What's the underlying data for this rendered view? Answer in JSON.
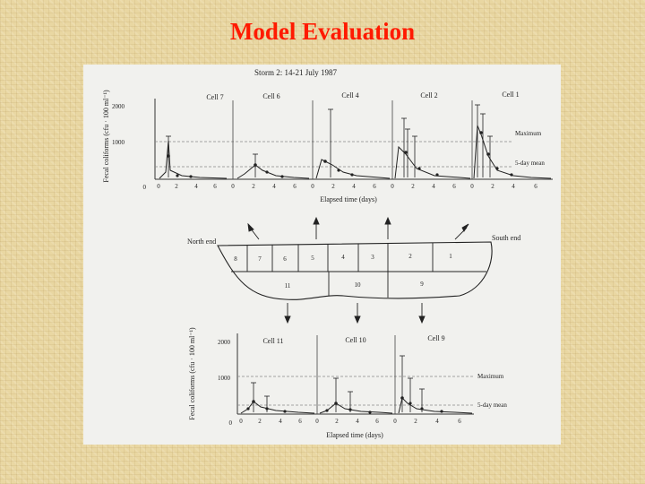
{
  "slide": {
    "title": "Model Evaluation"
  },
  "figure": {
    "caption": "Storm 2: 14-21 July 1987",
    "top_panel": {
      "ylabel": "Fecal coliforms (cfu · 100 ml⁻¹)",
      "y_ticks": [
        "2000",
        "1000",
        "0"
      ],
      "cells": [
        "Cell 7",
        "Cell 6",
        "Cell 4",
        "Cell 2",
        "Cell 1"
      ],
      "x_ticks": [
        "0",
        "2",
        "4",
        "6",
        "0",
        "2",
        "4",
        "6",
        "0",
        "2",
        "4",
        "6",
        "0",
        "2",
        "4",
        "6",
        "0",
        "2",
        "4",
        "6"
      ],
      "xlabel": "Elapsed time (days)",
      "legend_max": "Maximum",
      "legend_mean": "5-day mean"
    },
    "map": {
      "north": "North end",
      "south": "South end",
      "top_row_cells": [
        "8",
        "7",
        "6",
        "5",
        "4",
        "3",
        "2",
        "1"
      ],
      "bottom_row_cells": [
        "11",
        "10",
        "9"
      ]
    },
    "bottom_panel": {
      "ylabel": "Fecal coliforms (cfu · 100 ml⁻¹)",
      "y_ticks": [
        "2000",
        "1000",
        "0"
      ],
      "cells": [
        "Cell 11",
        "Cell 10",
        "Cell 9"
      ],
      "x_ticks": [
        "0",
        "2",
        "4",
        "6",
        "0",
        "2",
        "4",
        "6",
        "0",
        "2",
        "4",
        "6"
      ],
      "xlabel": "Elapsed time (days)",
      "legend_max": "Maximum",
      "legend_mean": "5-day mean"
    }
  }
}
